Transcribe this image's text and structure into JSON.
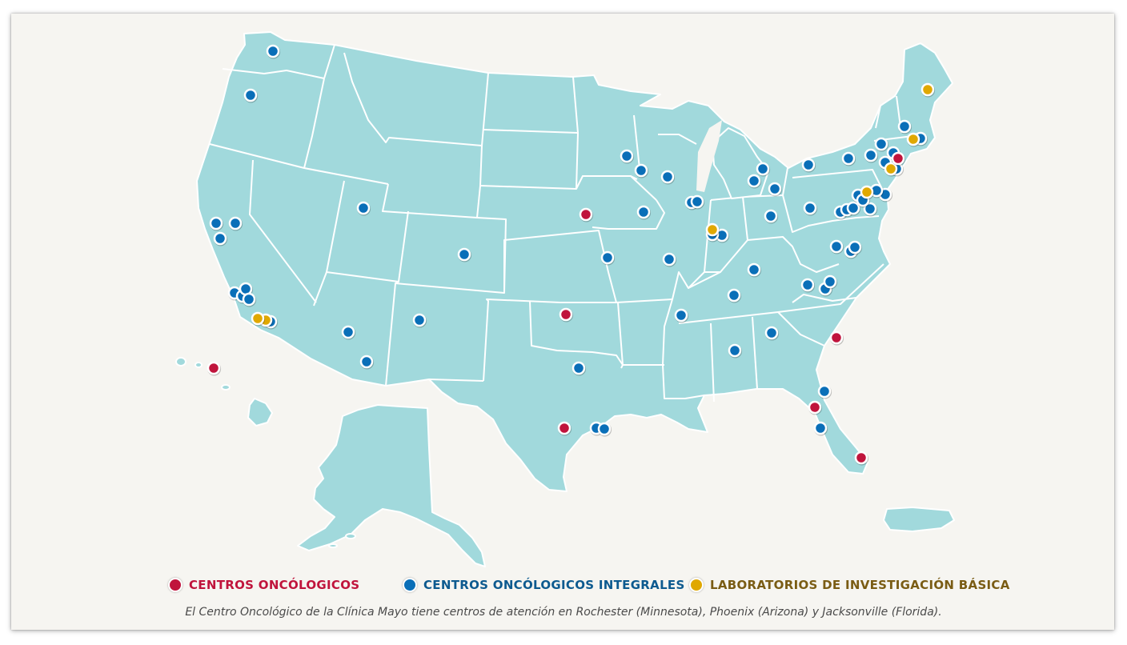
{
  "colors": {
    "background": "#f6f5f1",
    "land": "#a1d9dc",
    "oncology_center": "#c0143c",
    "comprehensive_center": "#0a6fb8",
    "research_lab": "#e0a800"
  },
  "legend": {
    "oncology_centers": "CENTROS ONCÓLOGICOS",
    "comprehensive_centers": "CENTROS ONCÓLOGICOS INTEGRALES",
    "research_labs": "LABORATORIOS DE INVESTIGACIÓN BÁSICA"
  },
  "caption": "El Centro Oncológico de la Clínica Mayo tiene centros de atención en Rochester (Minnesota), Phoenix (Arizona) y Jacksonville (Florida).",
  "map": {
    "region": "United States, Alaska, Hawaii and Puerto Rico",
    "marker_counts": {
      "oncology_centers": 8,
      "comprehensive_centers": 63,
      "research_labs": 7
    }
  }
}
